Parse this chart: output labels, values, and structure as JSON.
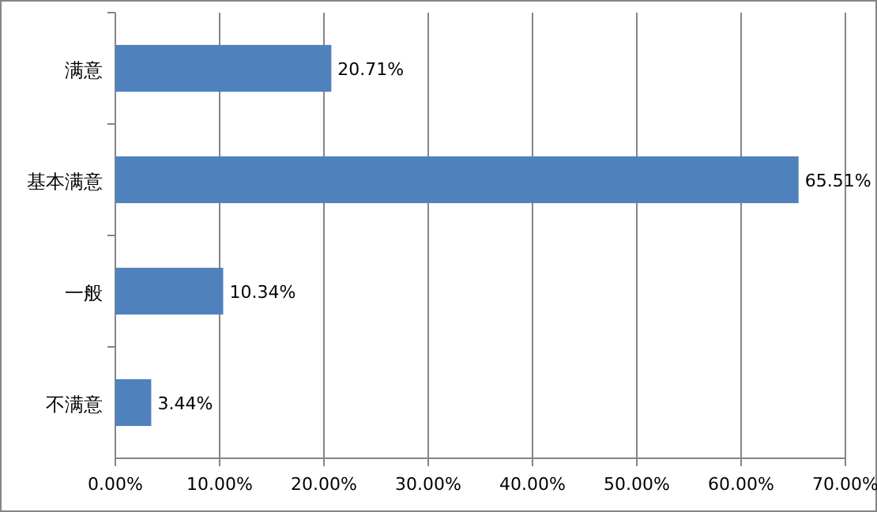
{
  "chart_data": {
    "type": "bar",
    "orientation": "horizontal",
    "categories": [
      "满意",
      "基本满意",
      "一般",
      "不满意"
    ],
    "values": [
      20.71,
      65.51,
      10.34,
      3.44
    ],
    "value_labels": [
      "20.71%",
      "65.51%",
      "10.34%",
      "3.44%"
    ],
    "color": "#4f81bd",
    "xlim": [
      0,
      70
    ],
    "xticks": [
      {
        "value": 0,
        "label": "0.00%"
      },
      {
        "value": 10,
        "label": "10.00%"
      },
      {
        "value": 20,
        "label": "20.00%"
      },
      {
        "value": 30,
        "label": "30.00%"
      },
      {
        "value": 40,
        "label": "40.00%"
      },
      {
        "value": 50,
        "label": "50.00%"
      },
      {
        "value": 60,
        "label": "60.00%"
      },
      {
        "value": 70,
        "label": "70.00%"
      }
    ],
    "grid": "x"
  }
}
